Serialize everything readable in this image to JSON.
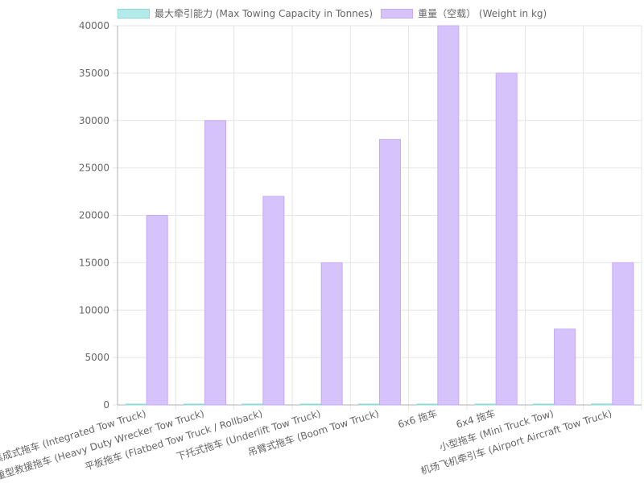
{
  "chart_data": {
    "type": "bar",
    "categories": [
      "集成式拖车 (Integrated Tow Truck)",
      "重型救援拖车 (Heavy Duty Wrecker Tow Truck)",
      "平板拖车 (Flatbed Tow Truck / Rollback)",
      "下托式拖车 (Underlift Tow Truck)",
      "吊臂式拖车 (Boom Tow Truck)",
      "6x6 拖车",
      "6x4 拖车",
      "小型拖车 (Mini Truck Tow)",
      "机场飞机牵引车 (Airport Aircraft Tow Truck)"
    ],
    "series": [
      {
        "name": "最大牵引能力 (Max Towing Capacity in Tonnes)",
        "values": [
          50,
          60,
          15,
          10,
          25,
          40,
          30,
          5,
          100
        ],
        "fill": "#b2ebea",
        "stroke": "#8fd9d9"
      },
      {
        "name": "重量（空载） (Weight in kg)",
        "values": [
          20000,
          30000,
          22000,
          15000,
          28000,
          40000,
          35000,
          8000,
          15000
        ],
        "fill": "#d6c3fc",
        "stroke": "#c4aaf7"
      }
    ],
    "yticks": [
      "0",
      "5000",
      "10000",
      "15000",
      "20000",
      "25000",
      "30000",
      "35000",
      "40000"
    ],
    "ylim": [
      0,
      40000
    ],
    "grid": true,
    "legend_position": "top"
  },
  "colors": {
    "grid": "#e5e5e5",
    "axis": "#b0b0b0",
    "tick_text": "#666666"
  }
}
